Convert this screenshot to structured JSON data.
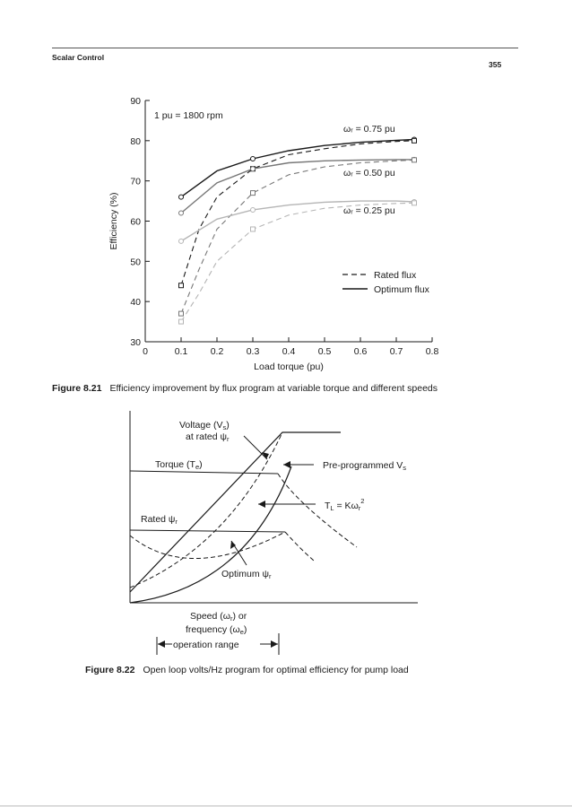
{
  "header": {
    "running_head": "Scalar Control",
    "page_number": "355"
  },
  "fig821": {
    "label": "Figure 8.21",
    "caption": "Efficiency improvement by flux program at variable torque and different speeds",
    "note": "1 pu = 1800 rpm",
    "legend_rated": "Rated flux",
    "legend_optimum": "Optimum flux",
    "curve_labels": [
      "ωᵣ = 0.75 pu",
      "ωᵣ = 0.50 pu",
      "ωᵣ = 0.25 pu"
    ]
  },
  "chart_data": {
    "type": "line",
    "xlabel": "Load torque (pu)",
    "ylabel": "Efficiency (%)",
    "xlim": [
      0,
      0.8
    ],
    "ylim": [
      30,
      90
    ],
    "x_ticks": [
      "0",
      "0.1",
      "0.2",
      "0.3",
      "0.4",
      "0.5",
      "0.6",
      "0.7",
      "0.8"
    ],
    "y_ticks": [
      "30",
      "40",
      "50",
      "60",
      "70",
      "80",
      "90"
    ],
    "legend_position": "right",
    "series": [
      {
        "speed": "0.75",
        "flux": "Optimum",
        "style": "solid",
        "x": [
          0.1,
          0.2,
          0.3,
          0.4,
          0.5,
          0.6,
          0.7,
          0.75
        ],
        "y": [
          66,
          72.5,
          75.5,
          77.5,
          78.8,
          79.6,
          80.1,
          80.3
        ]
      },
      {
        "speed": "0.75",
        "flux": "Rated",
        "style": "dashed",
        "x": [
          0.1,
          0.15,
          0.2,
          0.3,
          0.4,
          0.5,
          0.6,
          0.7,
          0.75
        ],
        "y": [
          44,
          58,
          66,
          73,
          76.5,
          78,
          79.2,
          79.8,
          80
        ]
      },
      {
        "speed": "0.50",
        "flux": "Optimum",
        "style": "solid",
        "x": [
          0.1,
          0.2,
          0.3,
          0.4,
          0.5,
          0.6,
          0.7,
          0.75
        ],
        "y": [
          62,
          69.5,
          73,
          74.5,
          75,
          75.2,
          75.3,
          75.3
        ]
      },
      {
        "speed": "0.50",
        "flux": "Rated",
        "style": "dashed",
        "x": [
          0.1,
          0.15,
          0.2,
          0.3,
          0.4,
          0.5,
          0.6,
          0.7,
          0.75
        ],
        "y": [
          37,
          48,
          58,
          67,
          71.5,
          73.5,
          74.5,
          75,
          75.2
        ]
      },
      {
        "speed": "0.25",
        "flux": "Optimum",
        "style": "solid",
        "x": [
          0.1,
          0.2,
          0.3,
          0.4,
          0.5,
          0.6,
          0.7,
          0.75
        ],
        "y": [
          55,
          60.5,
          62.8,
          64,
          64.7,
          65,
          65,
          64.8
        ]
      },
      {
        "speed": "0.25",
        "flux": "Rated",
        "style": "dashed",
        "x": [
          0.1,
          0.15,
          0.2,
          0.3,
          0.4,
          0.5,
          0.6,
          0.7,
          0.75
        ],
        "y": [
          35,
          42,
          50,
          58,
          61.5,
          63.2,
          64,
          64.4,
          64.5
        ]
      }
    ]
  },
  "fig822": {
    "label": "Figure 8.22",
    "caption": "Open loop volts/Hz program for optimal efficiency for pump load",
    "voltage_label_1": "Voltage (V",
    "voltage_label_1_sub": "s",
    "voltage_label_1_end": ")",
    "voltage_label_2": "at rated ψ",
    "voltage_label_2_sub": "r",
    "torque_label": "Torque (T",
    "torque_label_sub": "e",
    "torque_label_end": ")",
    "preprogrammed_label": "Pre-programmed V",
    "preprogrammed_sub": "s",
    "tl_label": "T",
    "tl_sub": "L",
    "tl_mid": " = Kω",
    "tl_sub2": "r",
    "tl_sup": "2",
    "rated_psi_label": "Rated ψ",
    "rated_psi_sub": "r",
    "optimum_psi_label": "Optimum ψ",
    "optimum_psi_sub": "r",
    "speed_line1": "Speed (ω",
    "speed_line1_sub": "r",
    "speed_line1_end": ") or",
    "speed_line2": "frequency (ω",
    "speed_line2_sub": "e",
    "speed_line2_end": ")",
    "range_label": "operation range"
  }
}
